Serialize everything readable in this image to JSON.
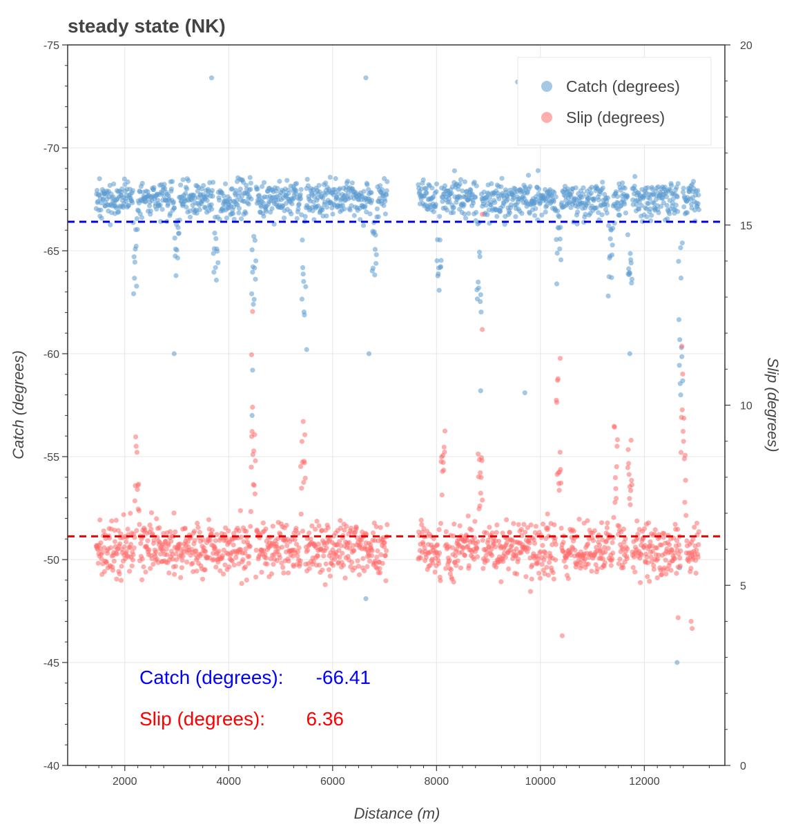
{
  "chart_data": {
    "type": "scatter",
    "title": "steady state (NK)",
    "xlabel": "Distance (m)",
    "ylabel": "Catch (degrees)",
    "y2label": "Slip (degrees)",
    "xlim": [
      900,
      13550
    ],
    "ylim": [
      -40,
      -75
    ],
    "y2lim": [
      0,
      20
    ],
    "x_ticks": [
      "2000",
      "4000",
      "6000",
      "8000",
      "10000",
      "12000"
    ],
    "y_ticks": [
      "-75",
      "-70",
      "-65",
      "-60",
      "-55",
      "-50",
      "-45",
      "-40"
    ],
    "y2_ticks": [
      "20",
      "15",
      "10",
      "5",
      "0"
    ],
    "grid": true,
    "legend": {
      "placement": "top-right",
      "entries": [
        "Catch (degrees)",
        "Slip (degrees)"
      ]
    },
    "series": [
      {
        "name": "Catch (degrees)",
        "axis": "left",
        "color": "#5b9bd0",
        "mean": -66.41,
        "segments": [
          [
            1450,
            7050
          ],
          [
            7650,
            13050
          ]
        ],
        "outliers": [
          {
            "x": 3670,
            "y": -73.4
          },
          {
            "x": 6640,
            "y": -73.4
          },
          {
            "x": 9560,
            "y": -73.2
          },
          {
            "x": 2950,
            "y": -60.0
          },
          {
            "x": 4450,
            "y": -57.0
          },
          {
            "x": 4460,
            "y": -59.2
          },
          {
            "x": 5500,
            "y": -60.2
          },
          {
            "x": 6700,
            "y": -60.0
          },
          {
            "x": 8850,
            "y": -58.2
          },
          {
            "x": 9700,
            "y": -58.1
          },
          {
            "x": 11720,
            "y": -60.0
          },
          {
            "x": 6640,
            "y": -48.1
          },
          {
            "x": 12630,
            "y": -45.0
          },
          {
            "x": 12680,
            "y": -49.6
          },
          {
            "x": 12700,
            "y": -58.0
          }
        ],
        "dips": [
          {
            "x": 2200,
            "depth": 4.8
          },
          {
            "x": 3000,
            "depth": 3.0
          },
          {
            "x": 3750,
            "depth": 3.5
          },
          {
            "x": 4480,
            "depth": 5.5
          },
          {
            "x": 5440,
            "depth": 5.5
          },
          {
            "x": 6800,
            "depth": 3.5
          },
          {
            "x": 8050,
            "depth": 5.5
          },
          {
            "x": 8820,
            "depth": 5.5
          },
          {
            "x": 10350,
            "depth": 4.5
          },
          {
            "x": 11350,
            "depth": 4.5
          },
          {
            "x": 11720,
            "depth": 5.0
          },
          {
            "x": 12700,
            "depth": 9.0
          }
        ]
      },
      {
        "name": "Slip (degrees)",
        "axis": "right",
        "color": "#ff6b6b",
        "mean": 6.36,
        "segments": [
          [
            1450,
            7050
          ],
          [
            7650,
            13050
          ]
        ],
        "outliers": [
          {
            "x": 4440,
            "y": 11.4
          },
          {
            "x": 4460,
            "y": 12.6
          },
          {
            "x": 8880,
            "y": 12.1
          },
          {
            "x": 8880,
            "y": 15.3
          },
          {
            "x": 10380,
            "y": 11.3
          },
          {
            "x": 10420,
            "y": 3.6
          },
          {
            "x": 12900,
            "y": 4.0
          },
          {
            "x": 12920,
            "y": 3.8
          },
          {
            "x": 12650,
            "y": 4.1
          }
        ],
        "peaks": [
          {
            "x": 2230,
            "height": 3.0
          },
          {
            "x": 4470,
            "height": 3.2
          },
          {
            "x": 5430,
            "height": 3.5
          },
          {
            "x": 8120,
            "height": 3.0
          },
          {
            "x": 8840,
            "height": 3.3
          },
          {
            "x": 10350,
            "height": 4.5
          },
          {
            "x": 11450,
            "height": 3.8
          },
          {
            "x": 11720,
            "height": 3.0
          },
          {
            "x": 12750,
            "height": 5.5
          }
        ]
      }
    ],
    "annotations": [
      {
        "label": "Catch (degrees):",
        "value": "-66.41",
        "color": "#0000ff"
      },
      {
        "label": "Slip (degrees):",
        "value": "6.36",
        "color": "#ff0000"
      }
    ]
  }
}
